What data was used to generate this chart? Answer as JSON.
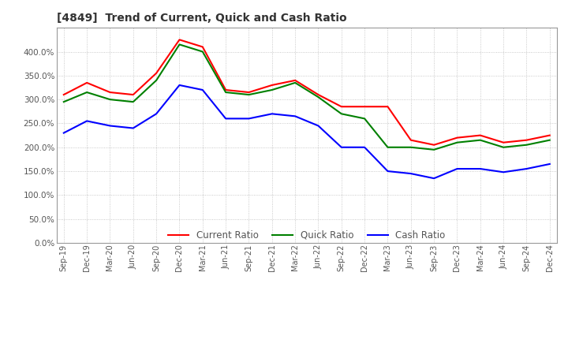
{
  "title": "[4849]  Trend of Current, Quick and Cash Ratio",
  "x_labels": [
    "Sep-19",
    "Dec-19",
    "Mar-20",
    "Jun-20",
    "Sep-20",
    "Dec-20",
    "Mar-21",
    "Jun-21",
    "Sep-21",
    "Dec-21",
    "Mar-22",
    "Jun-22",
    "Sep-22",
    "Dec-22",
    "Mar-23",
    "Jun-23",
    "Sep-23",
    "Dec-23",
    "Mar-24",
    "Jun-24",
    "Sep-24",
    "Dec-24"
  ],
  "current_ratio": [
    310,
    335,
    315,
    310,
    355,
    425,
    410,
    320,
    315,
    330,
    340,
    310,
    285,
    285,
    285,
    215,
    205,
    220,
    225,
    210,
    215,
    225
  ],
  "quick_ratio": [
    295,
    315,
    300,
    295,
    340,
    415,
    400,
    315,
    310,
    320,
    335,
    305,
    270,
    260,
    200,
    200,
    195,
    210,
    215,
    200,
    205,
    215
  ],
  "cash_ratio": [
    230,
    255,
    245,
    240,
    270,
    330,
    320,
    260,
    260,
    270,
    265,
    245,
    200,
    200,
    150,
    145,
    135,
    155,
    155,
    148,
    155,
    165
  ],
  "current_color": "#ff0000",
  "quick_color": "#008000",
  "cash_color": "#0000ff",
  "ylim": [
    0,
    450
  ],
  "yticks": [
    0,
    50,
    100,
    150,
    200,
    250,
    300,
    350,
    400
  ],
  "background_color": "#ffffff",
  "grid_color": "#bbbbbb"
}
